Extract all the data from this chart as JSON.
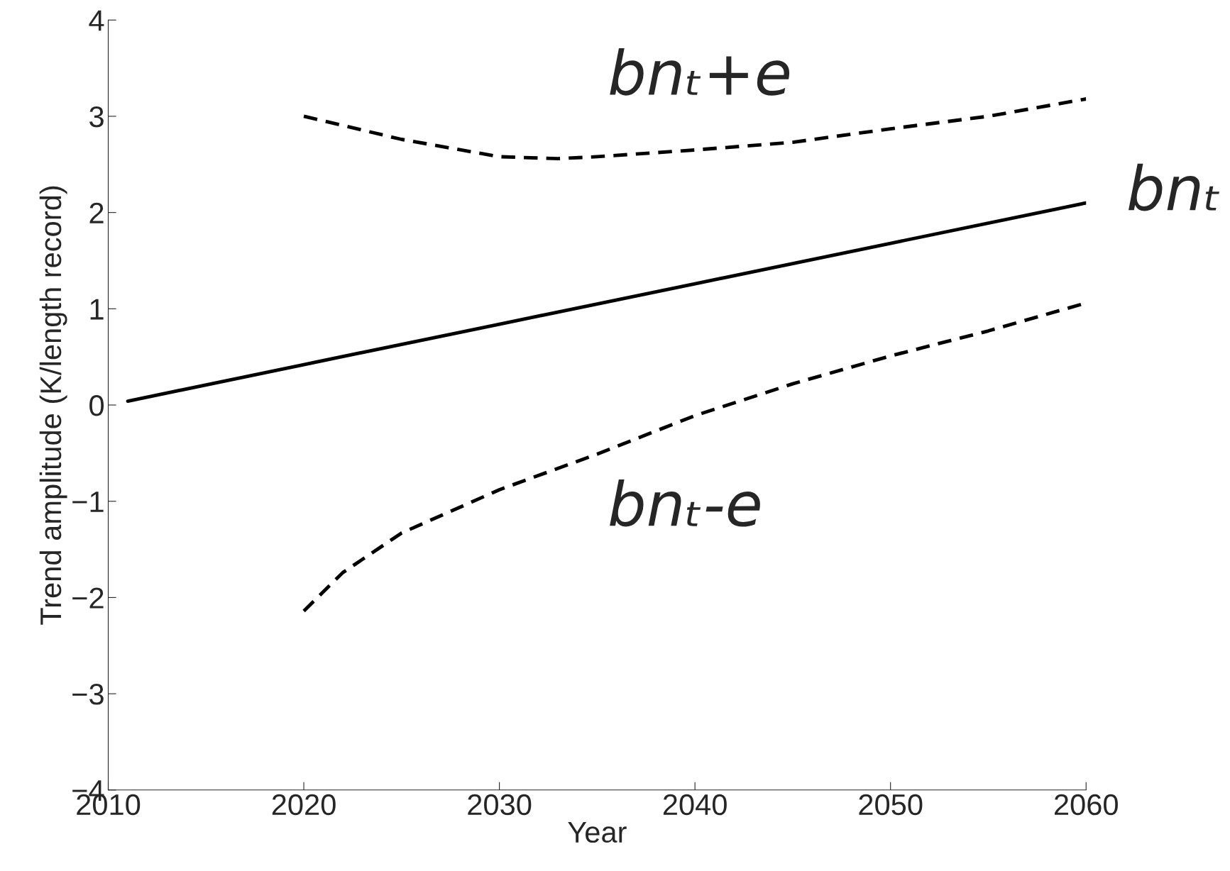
{
  "chart_data": {
    "type": "line",
    "xlabel": "Year",
    "ylabel": "Trend amplitude (K/length record)",
    "xlim": [
      2010,
      2060
    ],
    "xticks": [
      2010,
      2020,
      2030,
      2040,
      2050,
      2060
    ],
    "ylim": [
      -4,
      4
    ],
    "yticks": [
      {
        "value": -4,
        "label": "−4"
      },
      {
        "value": -3,
        "label": "−3"
      },
      {
        "value": -2,
        "label": "−2"
      },
      {
        "value": -1,
        "label": "−1"
      },
      0,
      1,
      2,
      3,
      4
    ],
    "grid": false,
    "legend": false,
    "series": [
      {
        "color": "#000000",
        "line_style": "solid",
        "x": [
          2011,
          2020,
          2030,
          2040,
          2050,
          2060
        ],
        "values": [
          0.04,
          0.42,
          0.84,
          1.26,
          1.68,
          2.1
        ]
      },
      {
        "color": "#000000",
        "line_style": "dashed",
        "x": [
          2020,
          2025,
          2030,
          2033,
          2035,
          2040,
          2045,
          2050,
          2055,
          2060
        ],
        "values": [
          3.0,
          2.76,
          2.58,
          2.56,
          2.58,
          2.65,
          2.73,
          2.87,
          3.0,
          3.18
        ]
      },
      {
        "color": "#000000",
        "line_style": "dashed",
        "x": [
          2020,
          2022,
          2025,
          2030,
          2035,
          2040,
          2045,
          2050,
          2055,
          2060
        ],
        "values": [
          -2.14,
          -1.74,
          -1.33,
          -0.88,
          -0.51,
          -0.11,
          0.22,
          0.51,
          0.77,
          1.06
        ]
      }
    ],
    "annotations": [
      "bnₜ+e",
      "bnₜ",
      "bnₜ-e"
    ]
  }
}
